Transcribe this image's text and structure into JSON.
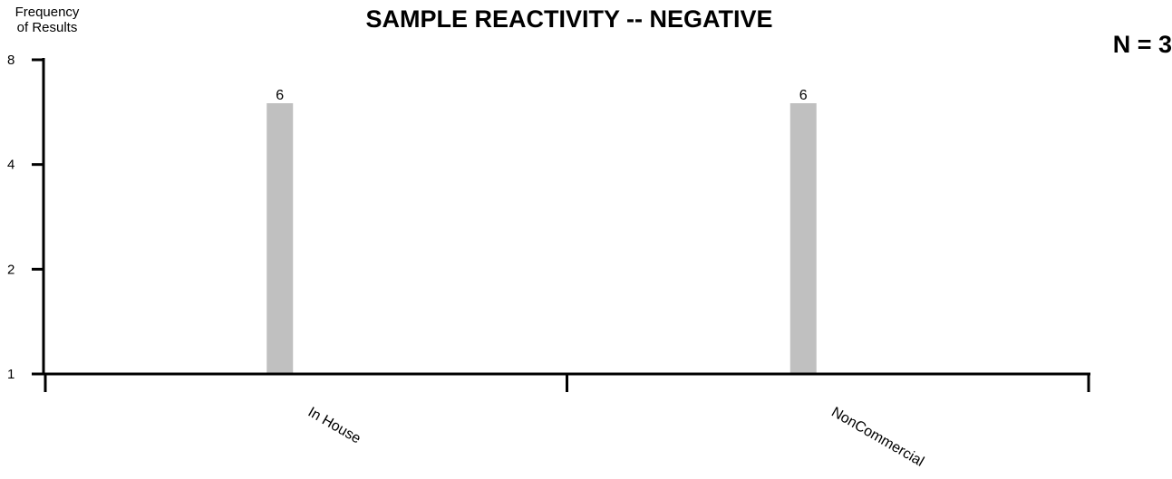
{
  "chart_data": {
    "type": "bar",
    "title": "SAMPLE REACTIVITY -- NEGATIVE",
    "ylabel_line1": "Frequency",
    "ylabel_line2": "of Results",
    "n_label": "N = 3",
    "categories": [
      "In House",
      "NonCommercial"
    ],
    "values": [
      6,
      6
    ],
    "data_labels": [
      "6",
      "6"
    ],
    "yscale": "log",
    "ylim": [
      1,
      8
    ],
    "yticks": [
      1,
      2,
      4,
      8
    ],
    "ytick_labels": [
      "1",
      "2",
      "4",
      "8"
    ],
    "bar_color": "#c0c0c0",
    "grid": false,
    "legend": "none"
  }
}
